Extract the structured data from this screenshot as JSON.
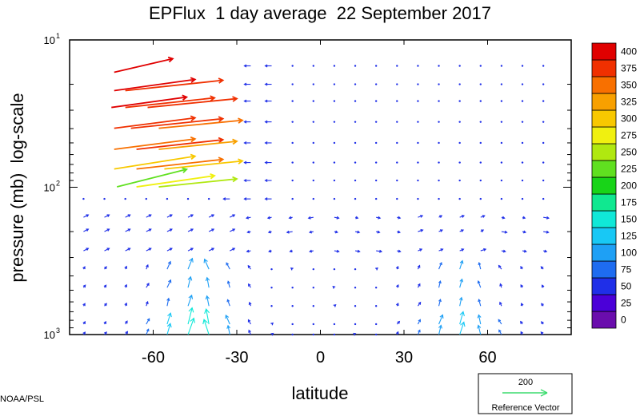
{
  "chart_data": {
    "type": "vector-field",
    "title": "EPFlux  1 day average  22 September 2017",
    "xlabel": "latitude",
    "ylabel": "pressure (mb)  log-scale",
    "xlim": [
      -90,
      90
    ],
    "ylim": [
      1000,
      10
    ],
    "yscale": "log",
    "x_ticks": [
      -60,
      -30,
      0,
      30,
      60
    ],
    "y_ticks": [
      {
        "base": "10",
        "exp": "1",
        "value": 10
      },
      {
        "base": "10",
        "exp": "2",
        "value": 100
      },
      {
        "base": "10",
        "exp": "3",
        "value": 1000
      }
    ],
    "colorbar": {
      "levels": [
        0,
        25,
        50,
        75,
        100,
        125,
        150,
        175,
        200,
        225,
        250,
        275,
        300,
        325,
        350,
        375,
        400
      ],
      "labels": [
        "0",
        "25",
        "50",
        "75",
        "100",
        "125",
        "150",
        "175",
        "200",
        "225",
        "250",
        "275",
        "300",
        "325",
        "350",
        "375",
        "400"
      ],
      "colors": [
        "#6a0dad",
        "#4b00d8",
        "#1f2fe8",
        "#1e6cf0",
        "#1ea0f5",
        "#18c8f5",
        "#10e8d8",
        "#10e890",
        "#18d418",
        "#60e020",
        "#b0e810",
        "#f0f010",
        "#f8c800",
        "#f8a000",
        "#f87000",
        "#f03000",
        "#e00000"
      ]
    },
    "reference_vector": {
      "value": "200",
      "label": "Reference Vector",
      "color": "#3cdc6e"
    },
    "strong_vectors": [
      {
        "lon": -63,
        "lat_from": -74,
        "p": 15,
        "dx": 22,
        "dy": -9,
        "mag": 400
      },
      {
        "lon": -55,
        "lat_from": -74,
        "p": 20,
        "dx": 32,
        "dy": -6,
        "mag": 400
      },
      {
        "lon": -45,
        "lat_from": -70,
        "p": 20,
        "dx": 30,
        "dy": -5,
        "mag": 395
      },
      {
        "lon": -58,
        "lat_from": -75,
        "p": 26,
        "dx": 34,
        "dy": -5,
        "mag": 400
      },
      {
        "lon": -48,
        "lat_from": -70,
        "p": 26,
        "dx": 32,
        "dy": -4,
        "mag": 395
      },
      {
        "lon": -40,
        "lat_from": -62,
        "p": 26,
        "dx": 26,
        "dy": -3,
        "mag": 385
      },
      {
        "lon": -55,
        "lat_from": -74,
        "p": 36,
        "dx": 32,
        "dy": -5,
        "mag": 390
      },
      {
        "lon": -45,
        "lat_from": -68,
        "p": 36,
        "dx": 30,
        "dy": -4,
        "mag": 395
      },
      {
        "lon": -38,
        "lat_from": -58,
        "p": 36,
        "dx": 24,
        "dy": -2,
        "mag": 370
      },
      {
        "lon": -55,
        "lat_from": -74,
        "p": 50,
        "dx": 30,
        "dy": -5,
        "mag": 360
      },
      {
        "lon": -45,
        "lat_from": -66,
        "p": 50,
        "dx": 28,
        "dy": -4,
        "mag": 390
      },
      {
        "lon": -40,
        "lat_from": -58,
        "p": 50,
        "dx": 24,
        "dy": -2,
        "mag": 340
      },
      {
        "lon": -55,
        "lat_from": -74,
        "p": 68,
        "dx": 28,
        "dy": -8,
        "mag": 300
      },
      {
        "lon": -45,
        "lat_from": -66,
        "p": 68,
        "dx": 28,
        "dy": -4,
        "mag": 365
      },
      {
        "lon": -38,
        "lat_from": -56,
        "p": 68,
        "dx": 22,
        "dy": -2,
        "mag": 310
      },
      {
        "lon": -58,
        "lat_from": -73,
        "p": 90,
        "dx": 26,
        "dy": -14,
        "mag": 240
      },
      {
        "lon": -48,
        "lat_from": -66,
        "p": 90,
        "dx": 26,
        "dy": -6,
        "mag": 290
      },
      {
        "lon": -40,
        "lat_from": -58,
        "p": 90,
        "dx": 22,
        "dy": -2,
        "mag": 270
      }
    ]
  },
  "credit": "NOAA/PSL"
}
